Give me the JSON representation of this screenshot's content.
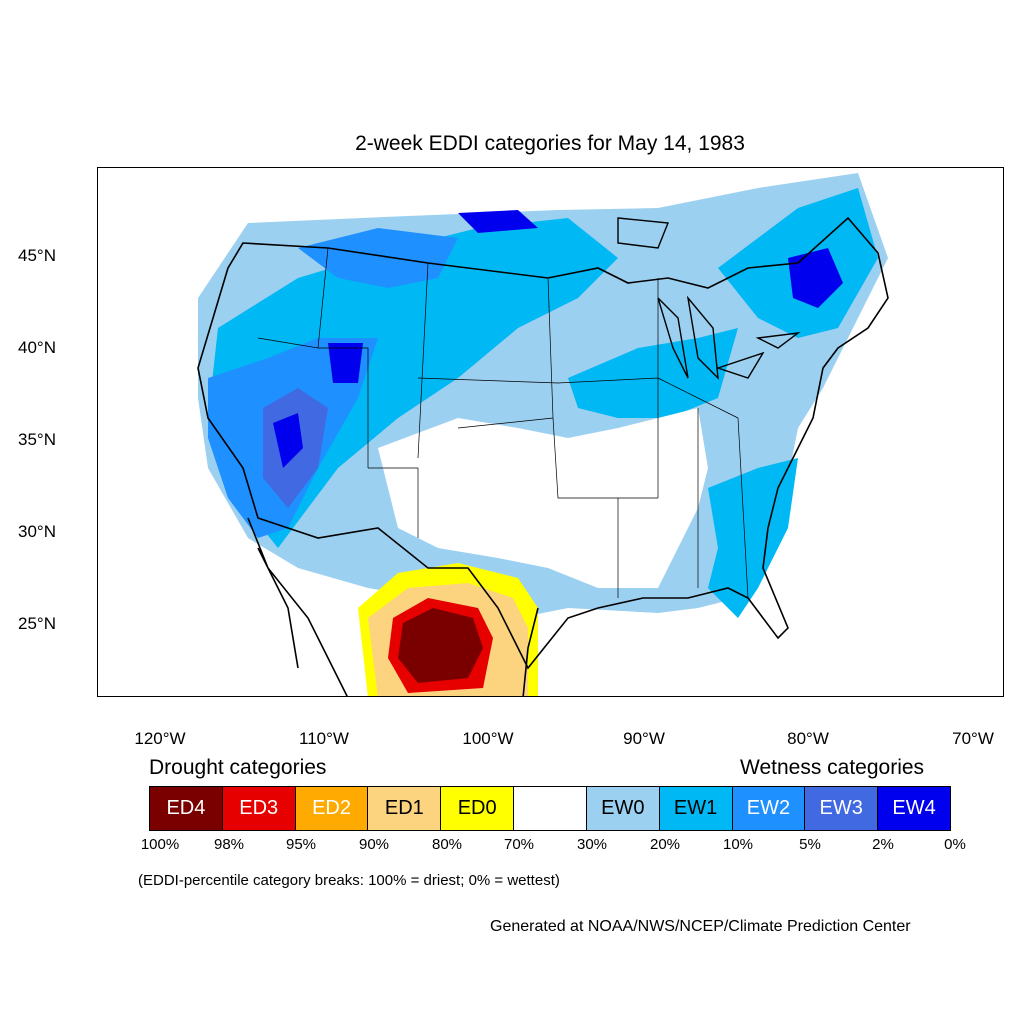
{
  "title": "2-week EDDI categories for May 14, 1983",
  "axes": {
    "lat_labels": [
      "45°N",
      "40°N",
      "35°N",
      "30°N",
      "25°N"
    ],
    "lon_labels": [
      "120°W",
      "110°W",
      "100°W",
      "90°W",
      "80°W",
      "70°W"
    ]
  },
  "legend": {
    "drought_label": "Drought categories",
    "wetness_label": "Wetness categories",
    "categories": [
      {
        "label": "ED4",
        "color": "#7a0000",
        "text_color": "#ffffff"
      },
      {
        "label": "ED3",
        "color": "#e60000",
        "text_color": "#ffffff"
      },
      {
        "label": "ED2",
        "color": "#ffaa00",
        "text_color": "#ffffff"
      },
      {
        "label": "ED1",
        "color": "#fcd37f",
        "text_color": "#000000"
      },
      {
        "label": "ED0",
        "color": "#ffff00",
        "text_color": "#000000"
      },
      {
        "label": "",
        "color": "#ffffff",
        "text_color": "#000000"
      },
      {
        "label": "EW0",
        "color": "#9cd0f0",
        "text_color": "#000000"
      },
      {
        "label": "EW1",
        "color": "#00b8f4",
        "text_color": "#000000"
      },
      {
        "label": "EW2",
        "color": "#1e90ff",
        "text_color": "#ffffff"
      },
      {
        "label": "EW3",
        "color": "#4169e1",
        "text_color": "#ffffff"
      },
      {
        "label": "EW4",
        "color": "#0000ee",
        "text_color": "#ffffff"
      }
    ],
    "percent_breaks": [
      "100%",
      "98%",
      "95%",
      "90%",
      "80%",
      "70%",
      "30%",
      "20%",
      "10%",
      "5%",
      "2%",
      "0%"
    ]
  },
  "note": "(EDDI-percentile category breaks: 100% = driest; 0% = wettest)",
  "credit": "Generated at NOAA/NWS/NCEP/Climate Prediction Center"
}
